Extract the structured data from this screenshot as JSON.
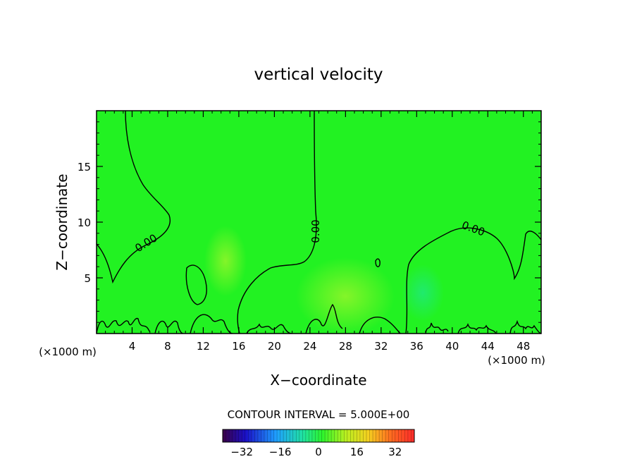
{
  "chart_data": {
    "type": "heatmap",
    "title": "vertical velocity",
    "xlabel": "X−coordinate",
    "ylabel": "Z−coordinate",
    "x_unit_left": "(×1000 m)",
    "x_unit_right": "(×1000 m)",
    "xlim": [
      0,
      50
    ],
    "ylim": [
      0,
      20
    ],
    "x_ticks": [
      4,
      8,
      12,
      16,
      20,
      24,
      28,
      32,
      36,
      40,
      44,
      48
    ],
    "y_ticks": [
      5,
      10,
      15
    ],
    "field_value_range": [
      -2,
      4
    ],
    "contour_level_label": "0.00",
    "contour_interval_text": "CONTOUR INTERVAL = 5.000E+00",
    "colorbar": {
      "min": -40,
      "max": 40,
      "ticks": [
        -32,
        -16,
        0,
        16,
        32
      ],
      "tick_labels": [
        "−32",
        "−16",
        "0",
        "16",
        "32"
      ]
    }
  }
}
